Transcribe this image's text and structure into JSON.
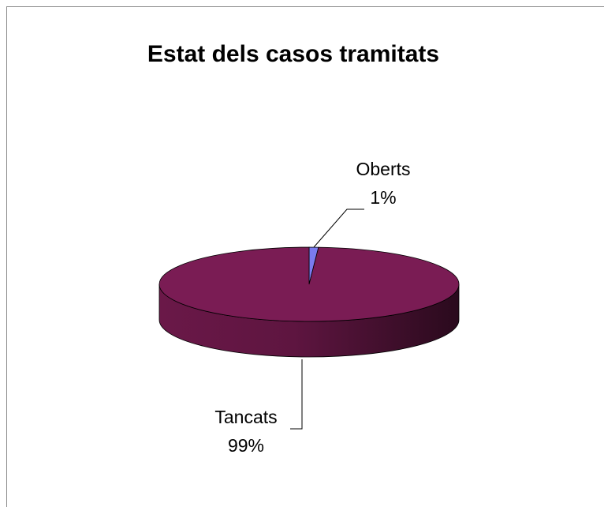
{
  "chart_data": {
    "type": "pie3d",
    "title": "Estat dels casos tramitats",
    "categories": [
      "Oberts",
      "Tancats"
    ],
    "values": [
      1,
      99
    ],
    "value_labels": [
      "1%",
      "99%"
    ],
    "colors": [
      "#7b7bf0",
      "#7a1c54"
    ]
  }
}
